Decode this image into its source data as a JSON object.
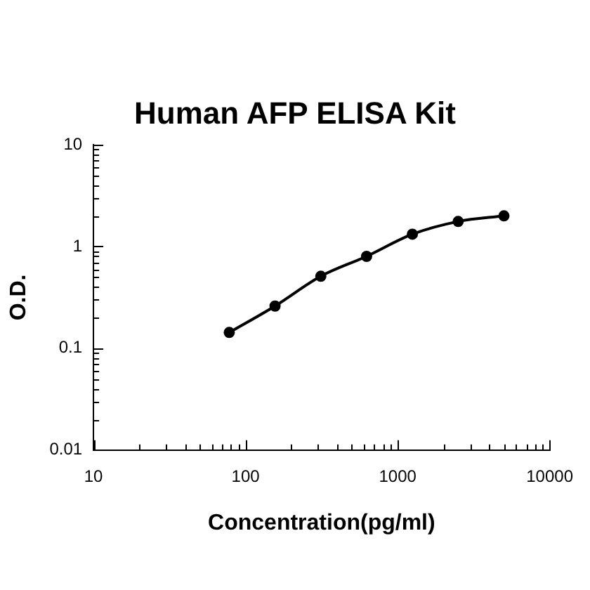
{
  "chart_data": {
    "type": "line",
    "title": "Human AFP ELISA Kit",
    "xlabel": "Concentration(pg/ml)",
    "ylabel": "O.D.",
    "x": [
      78.125,
      156.25,
      312.5,
      625,
      1250,
      2500,
      5000
    ],
    "series": [
      {
        "color": "#000000",
        "values": [
          0.143,
          0.26,
          0.51,
          0.8,
          1.32,
          1.76,
          2.0
        ]
      }
    ],
    "log": "xy",
    "xlim": [
      10,
      10000
    ],
    "ylim": [
      0.01,
      10
    ],
    "xticks": [
      10,
      {
        "value": 20,
        "label": null
      },
      {
        "value": 30,
        "label": null
      },
      {
        "value": 40,
        "label": null
      },
      {
        "value": 50,
        "label": null
      },
      {
        "value": 60,
        "label": null
      },
      {
        "value": 70,
        "label": null
      },
      {
        "value": 80,
        "label": null
      },
      {
        "value": 90,
        "label": null
      },
      100,
      {
        "value": 200,
        "label": null
      },
      {
        "value": 300,
        "label": null
      },
      {
        "value": 400,
        "label": null
      },
      {
        "value": 500,
        "label": null
      },
      {
        "value": 600,
        "label": null
      },
      {
        "value": 700,
        "label": null
      },
      {
        "value": 800,
        "label": null
      },
      {
        "value": 900,
        "label": null
      },
      1000,
      {
        "value": 2000,
        "label": null
      },
      {
        "value": 3000,
        "label": null
      },
      {
        "value": 4000,
        "label": null
      },
      {
        "value": 5000,
        "label": null
      },
      {
        "value": 6000,
        "label": null
      },
      {
        "value": 7000,
        "label": null
      },
      {
        "value": 8000,
        "label": null
      },
      {
        "value": 9000,
        "label": null
      },
      10000
    ],
    "yticks": [
      0.01,
      {
        "value": 0.02,
        "label": null
      },
      {
        "value": 0.03,
        "label": null
      },
      {
        "value": 0.04,
        "label": null
      },
      {
        "value": 0.05,
        "label": null
      },
      {
        "value": 0.06,
        "label": null
      },
      {
        "value": 0.07,
        "label": null
      },
      {
        "value": 0.08,
        "label": null
      },
      {
        "value": 0.09,
        "label": null
      },
      0.1,
      {
        "value": 0.2,
        "label": null
      },
      {
        "value": 0.3,
        "label": null
      },
      {
        "value": 0.4,
        "label": null
      },
      {
        "value": 0.5,
        "label": null
      },
      {
        "value": 0.6,
        "label": null
      },
      {
        "value": 0.7,
        "label": null
      },
      {
        "value": 0.8,
        "label": null
      },
      {
        "value": 0.9,
        "label": null
      },
      1,
      {
        "value": 2,
        "label": null
      },
      {
        "value": 3,
        "label": null
      },
      {
        "value": 4,
        "label": null
      },
      {
        "value": 5,
        "label": null
      },
      {
        "value": 6,
        "label": null
      },
      {
        "value": 7,
        "label": null
      },
      {
        "value": 8,
        "label": null
      },
      {
        "value": 9,
        "label": null
      },
      10
    ],
    "grid": false,
    "legend": false,
    "marker": "circle",
    "line_style": "solid"
  }
}
